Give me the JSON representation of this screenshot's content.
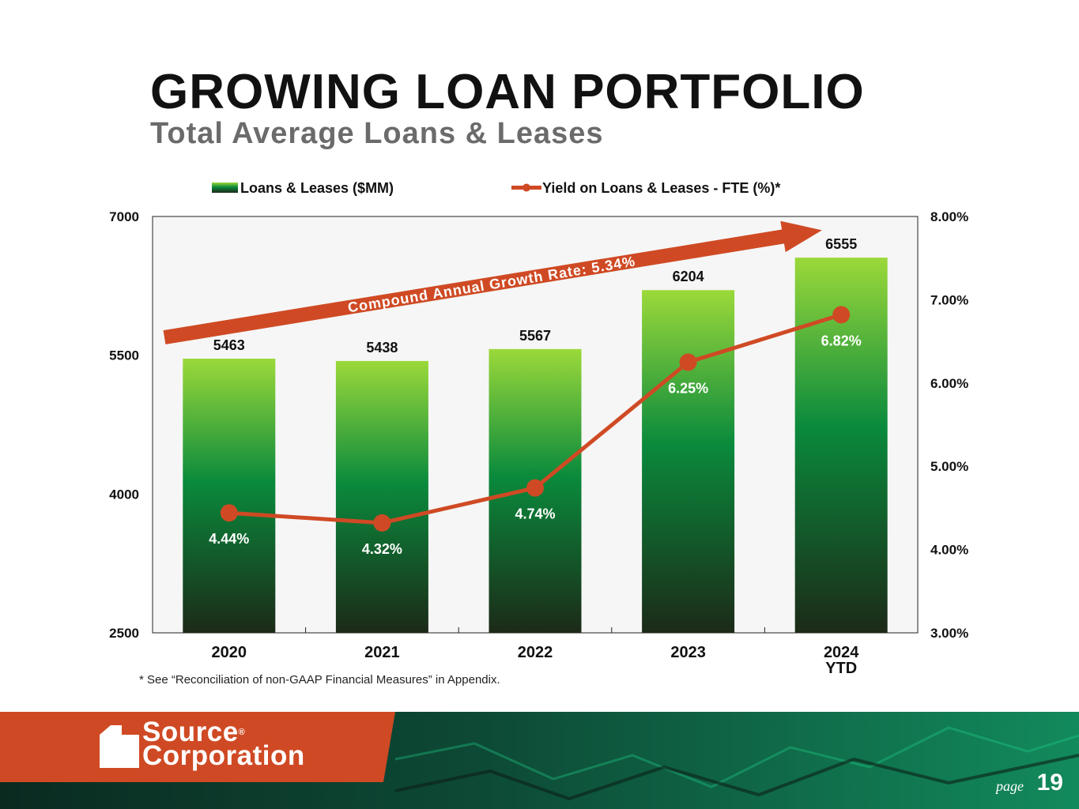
{
  "slide": {
    "title": "GROWING LOAN PORTFOLIO",
    "subtitle": "Total Average Loans & Leases",
    "footnote": "* See “Reconciliation of non-GAAP Financial Measures” in Appendix.",
    "page_label": "page",
    "page_number": "19"
  },
  "logo": {
    "mark_text": "st",
    "line1": "Source",
    "line2": "Corporation",
    "registered": "®"
  },
  "chart_data": {
    "type": "bar",
    "title": "",
    "categories": [
      "2020",
      "2021",
      "2022",
      "2023",
      "2024\nYTD"
    ],
    "series": [
      {
        "name": "Loans & Leases ($MM)",
        "type": "bar",
        "axis": "left",
        "values": [
          5463,
          5438,
          5567,
          6204,
          6555
        ],
        "labels": [
          "5463",
          "5438",
          "5567",
          "6204",
          "6555"
        ]
      },
      {
        "name": "Yield on Loans & Leases - FTE (%)*",
        "type": "line",
        "axis": "right",
        "values": [
          4.44,
          4.32,
          4.74,
          6.25,
          6.82
        ],
        "labels": [
          "4.44%",
          "4.32%",
          "4.74%",
          "6.25%",
          "6.82%"
        ]
      }
    ],
    "y_left": {
      "min": 2500,
      "max": 7000,
      "ticks": [
        "2500",
        "4000",
        "5500",
        "7000"
      ]
    },
    "y_right": {
      "min": 3.0,
      "max": 8.0,
      "ticks": [
        "3.00%",
        "4.00%",
        "5.00%",
        "6.00%",
        "7.00%",
        "8.00%"
      ]
    },
    "annotation": "Compound Annual Growth Rate: 5.34%",
    "legend_position": "top",
    "grid": false,
    "colors": {
      "bar_top": "#9bd93a",
      "bar_mid": "#0a8a3c",
      "bar_bottom": "#1c2a18",
      "line": "#cf4a24",
      "arrow": "#cf4a24",
      "plot_bg": "#f6f6f6"
    }
  }
}
